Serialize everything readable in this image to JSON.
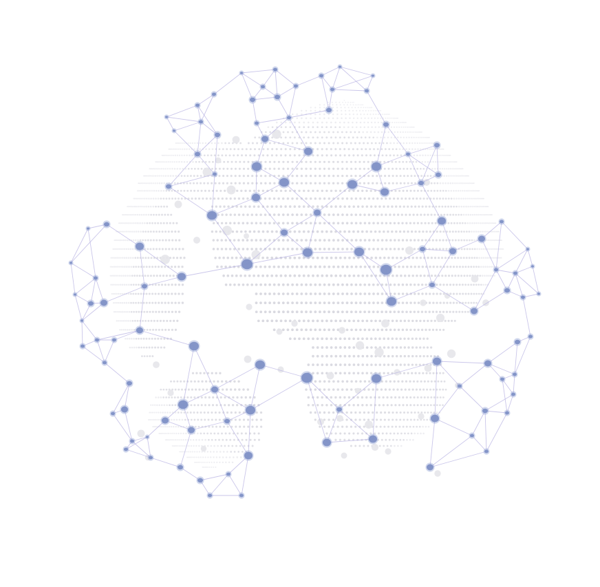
{
  "illustration": {
    "subject": "",
    "colors": {
      "background": "#ffffff",
      "node": "#7f91c6",
      "node_light": "#9aa9d6",
      "link": "#b9b4e3",
      "dot_grid": "#d9d9e0",
      "dot_grid_light": "#e7e7ec",
      "highlight": "#e6e6ea"
    }
  }
}
